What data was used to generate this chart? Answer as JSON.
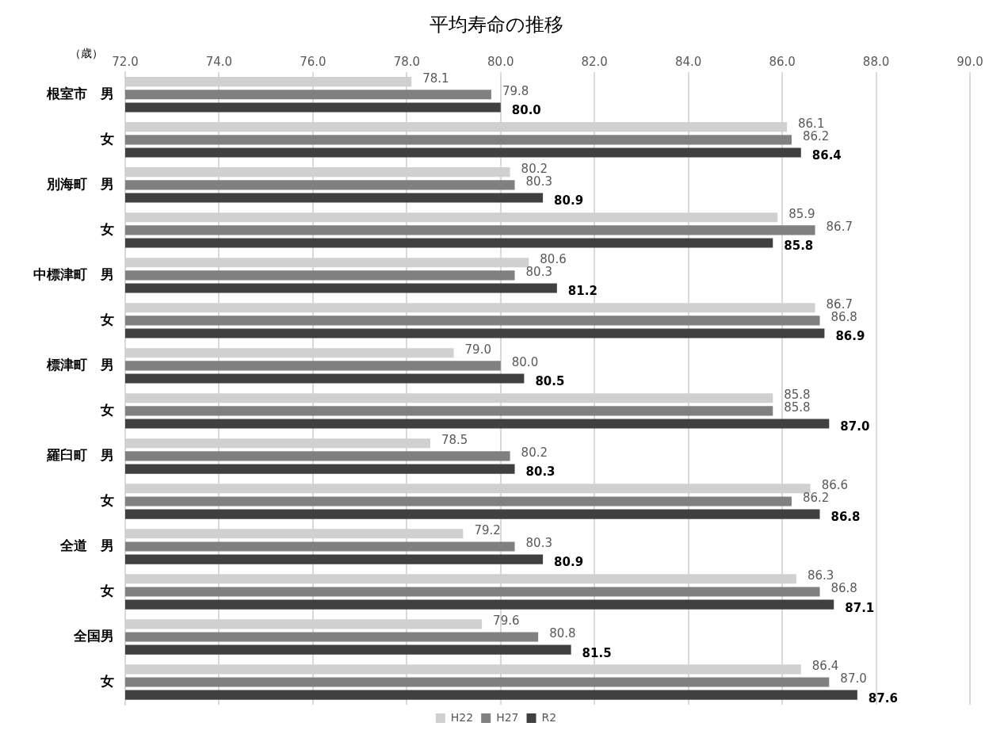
{
  "chart_data": {
    "type": "bar",
    "orientation": "horizontal",
    "title": "平均寿命の推移",
    "xlabel": "（歳）",
    "categories": [
      "根室市　男",
      "女",
      "別海町　男",
      "女",
      "中標津町　男",
      "女",
      "標津町　男",
      "女",
      "羅臼町　男",
      "女",
      "全道　男",
      "女",
      "全国男",
      "女"
    ],
    "series": [
      {
        "name": "H22",
        "color": "#d0d0d0",
        "values": [
          78.1,
          86.1,
          80.2,
          85.9,
          80.6,
          86.7,
          79.0,
          85.8,
          78.5,
          86.6,
          79.2,
          86.3,
          79.6,
          86.4
        ],
        "value_labels": [
          "78.1",
          "86.1",
          "80.2",
          "85.9",
          "80.6",
          "86.7",
          "79.0",
          "85.8",
          "78.5",
          "86.6",
          "79.2",
          "86.3",
          "79.6",
          "86.4"
        ]
      },
      {
        "name": "H27",
        "color": "#808080",
        "values": [
          79.8,
          86.2,
          80.3,
          86.7,
          80.3,
          86.8,
          80.0,
          85.8,
          80.2,
          86.2,
          80.3,
          86.8,
          80.8,
          87.0
        ],
        "value_labels": [
          "79.8",
          "86.2",
          "80.3",
          "86.7",
          "80.3",
          "86.8",
          "80.0",
          "85.8",
          "80.2",
          "86.2",
          "80.3",
          "86.8",
          "80.8",
          "87.0"
        ]
      },
      {
        "name": "R2",
        "color": "#404040",
        "values": [
          80.0,
          86.4,
          80.9,
          85.8,
          81.2,
          86.9,
          80.5,
          87.0,
          80.3,
          86.8,
          80.9,
          87.1,
          81.5,
          87.6
        ],
        "value_labels": [
          "80.0",
          "86.4",
          "80.9",
          "85.8",
          "81.2",
          "86.9",
          "80.5",
          "87.0",
          "80.3",
          "86.8",
          "80.9",
          "87.1",
          "81.5",
          "87.6"
        ]
      }
    ],
    "xlim": [
      72,
      90
    ],
    "xticks": [
      {
        "value": 72,
        "label": "72.0"
      },
      {
        "value": 74,
        "label": "74.0"
      },
      {
        "value": 76,
        "label": "76.0"
      },
      {
        "value": 78,
        "label": "78.0"
      },
      {
        "value": 80,
        "label": "80.0"
      },
      {
        "value": 82,
        "label": "82.0"
      },
      {
        "value": 84,
        "label": "84.0"
      },
      {
        "value": 86,
        "label": "86.0"
      },
      {
        "value": 88,
        "label": "88.0"
      },
      {
        "value": 90,
        "label": "90.0"
      }
    ],
    "grid": "x",
    "legend": "bottom"
  }
}
